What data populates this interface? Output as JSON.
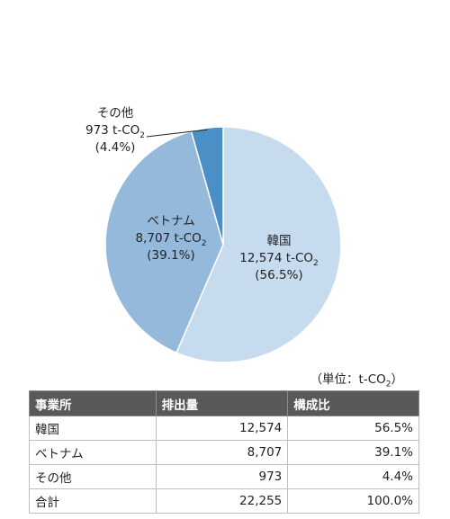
{
  "chart_data": {
    "type": "pie",
    "unit": "t-CO2",
    "slices": [
      {
        "name": "韓国",
        "value": 12574,
        "value_label": "12,574",
        "percent_label": "(56.5%)",
        "color": "#c6dbee"
      },
      {
        "name": "ベトナム",
        "value": 8707,
        "value_label": "8,707",
        "percent_label": "(39.1%)",
        "color": "#95b9da"
      },
      {
        "name": "その他",
        "value": 973,
        "value_label": "973",
        "percent_label": "(4.4%)",
        "color": "#4a8fc5"
      }
    ]
  },
  "unit_note": {
    "prefix": "（単位：t-CO",
    "sub": "2",
    "suffix": "）"
  },
  "table": {
    "headers": [
      "事業所",
      "排出量",
      "構成比"
    ],
    "rows": [
      [
        "韓国",
        "12,574",
        "56.5%"
      ],
      [
        "ベトナム",
        "8,707",
        "39.1%"
      ],
      [
        "その他",
        "973",
        "4.4%"
      ],
      [
        "合計",
        "22,255",
        "100.0%"
      ]
    ]
  }
}
